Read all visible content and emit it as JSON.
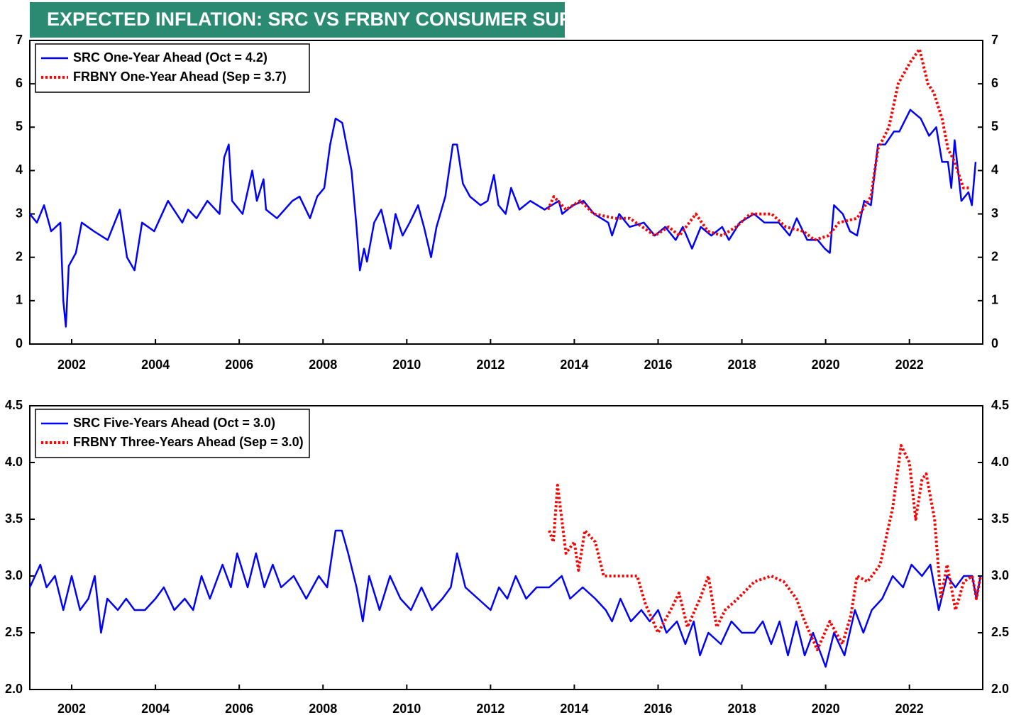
{
  "title": "EXPECTED INFLATION: SRC VS FRBNY CONSUMER SURVEYS",
  "chart_data": [
    {
      "type": "line",
      "legend": "upper left",
      "xlim": [
        2001.0,
        2023.75
      ],
      "ylim": [
        0,
        7
      ],
      "xticks": [
        2002,
        2004,
        2006,
        2008,
        2010,
        2012,
        2014,
        2016,
        2018,
        2020,
        2022
      ],
      "yticks": [
        0,
        1,
        2,
        3,
        4,
        5,
        6,
        7
      ],
      "series": [
        {
          "name": "SRC One-Year Ahead (Oct = 4.2)",
          "color": "#0000ff",
          "style": "solid",
          "x": [
            2001.0,
            2001.17,
            2001.34,
            2001.51,
            2001.73,
            2001.8,
            2001.86,
            2001.93,
            2002.1,
            2002.24,
            2002.53,
            2002.86,
            2003.15,
            2003.32,
            2003.5,
            2003.68,
            2003.97,
            2004.3,
            2004.64,
            2004.78,
            2004.98,
            2005.24,
            2005.53,
            2005.64,
            2005.75,
            2005.83,
            2006.08,
            2006.31,
            2006.42,
            2006.58,
            2006.64,
            2006.9,
            2007.27,
            2007.44,
            2007.69,
            2007.86,
            2008.03,
            2008.17,
            2008.3,
            2008.46,
            2008.68,
            2008.8,
            2008.88,
            2008.98,
            2009.05,
            2009.22,
            2009.39,
            2009.61,
            2009.73,
            2009.9,
            2010.07,
            2010.27,
            2010.41,
            2010.58,
            2010.71,
            2010.92,
            2011.1,
            2011.2,
            2011.34,
            2011.51,
            2011.76,
            2011.93,
            2012.08,
            2012.19,
            2012.36,
            2012.49,
            2012.69,
            2012.95,
            2013.29,
            2013.63,
            2013.71,
            2013.97,
            2014.22,
            2014.47,
            2014.81,
            2014.9,
            2015.07,
            2015.32,
            2015.66,
            2015.92,
            2016.17,
            2016.42,
            2016.59,
            2016.81,
            2017.02,
            2017.27,
            2017.53,
            2017.69,
            2017.95,
            2018.29,
            2018.54,
            2018.88,
            2019.14,
            2019.31,
            2019.56,
            2019.81,
            2019.98,
            2020.1,
            2020.2,
            2020.41,
            2020.58,
            2020.75,
            2020.92,
            2021.08,
            2021.25,
            2021.42,
            2021.63,
            2021.76,
            2022.02,
            2022.27,
            2022.47,
            2022.64,
            2022.78,
            2022.92,
            2023.0,
            2023.08,
            2023.24,
            2023.41,
            2023.49,
            2023.58
          ],
          "values": [
            3.0,
            2.8,
            3.2,
            2.6,
            2.8,
            1.0,
            0.4,
            1.8,
            2.1,
            2.8,
            2.6,
            2.4,
            3.1,
            2.0,
            1.7,
            2.8,
            2.6,
            3.3,
            2.8,
            3.1,
            2.9,
            3.3,
            3.0,
            4.3,
            4.6,
            3.3,
            3.0,
            4.0,
            3.3,
            3.8,
            3.1,
            2.9,
            3.3,
            3.4,
            2.9,
            3.4,
            3.6,
            4.6,
            5.2,
            5.1,
            4.0,
            2.7,
            1.7,
            2.2,
            1.9,
            2.8,
            3.1,
            2.2,
            3.0,
            2.5,
            2.8,
            3.2,
            2.7,
            2.0,
            2.7,
            3.4,
            4.6,
            4.6,
            3.7,
            3.4,
            3.2,
            3.3,
            3.9,
            3.2,
            3.0,
            3.6,
            3.1,
            3.3,
            3.1,
            3.3,
            3.0,
            3.2,
            3.3,
            3.0,
            2.8,
            2.5,
            3.0,
            2.7,
            2.8,
            2.5,
            2.7,
            2.4,
            2.7,
            2.2,
            2.7,
            2.5,
            2.7,
            2.4,
            2.8,
            3.0,
            2.8,
            2.8,
            2.5,
            2.9,
            2.4,
            2.4,
            2.2,
            2.1,
            3.2,
            3.0,
            2.6,
            2.5,
            3.3,
            3.2,
            4.6,
            4.6,
            4.9,
            4.9,
            5.4,
            5.2,
            4.8,
            5.0,
            4.2,
            4.2,
            3.6,
            4.7,
            3.3,
            3.5,
            3.2,
            4.2
          ]
        },
        {
          "name": "FRBNY One-Year Ahead (Sep = 3.7)",
          "color": "#ff0000",
          "style": "dotted",
          "x": [
            2013.37,
            2013.51,
            2013.8,
            2014.14,
            2014.47,
            2014.98,
            2015.32,
            2015.92,
            2016.25,
            2016.51,
            2016.9,
            2017.19,
            2017.53,
            2017.86,
            2018.2,
            2018.71,
            2019.05,
            2019.47,
            2019.73,
            2020.07,
            2020.32,
            2020.75,
            2021.08,
            2021.25,
            2021.51,
            2021.73,
            2022.02,
            2022.24,
            2022.44,
            2022.58,
            2022.78,
            2022.92,
            2023.08,
            2023.29,
            2023.46
          ],
          "values": [
            3.1,
            3.4,
            3.1,
            3.3,
            3.0,
            2.9,
            2.9,
            2.5,
            2.7,
            2.5,
            3.0,
            2.6,
            2.5,
            2.7,
            3.0,
            3.0,
            2.7,
            2.6,
            2.4,
            2.5,
            2.8,
            2.9,
            3.4,
            4.5,
            5.0,
            6.0,
            6.5,
            6.8,
            6.0,
            5.8,
            5.2,
            4.5,
            4.2,
            3.6,
            3.6
          ]
        }
      ]
    },
    {
      "type": "line",
      "legend": "upper left",
      "xlim": [
        2001.0,
        2023.75
      ],
      "ylim": [
        2,
        4.5
      ],
      "xticks": [
        2002,
        2004,
        2006,
        2008,
        2010,
        2012,
        2014,
        2016,
        2018,
        2020,
        2022
      ],
      "yticks": [
        {
          "value": 2,
          "label": "2.0"
        },
        2.5,
        {
          "value": 3,
          "label": "3.0"
        },
        3.5,
        {
          "value": 4,
          "label": "4.0"
        },
        4.5
      ],
      "series": [
        {
          "name": "SRC Five-Years Ahead (Oct = 3.0)",
          "color": "#0000ff",
          "style": "solid",
          "x": [
            2001.0,
            2001.25,
            2001.4,
            2001.6,
            2001.8,
            2002.0,
            2002.2,
            2002.4,
            2002.55,
            2002.7,
            2002.85,
            2003.1,
            2003.3,
            2003.5,
            2003.75,
            2004.0,
            2004.2,
            2004.45,
            2004.7,
            2004.9,
            2005.1,
            2005.3,
            2005.6,
            2005.8,
            2005.95,
            2006.2,
            2006.4,
            2006.6,
            2006.8,
            2007.0,
            2007.3,
            2007.6,
            2007.9,
            2008.1,
            2008.3,
            2008.45,
            2008.6,
            2008.8,
            2008.95,
            2009.1,
            2009.35,
            2009.6,
            2009.85,
            2010.1,
            2010.35,
            2010.6,
            2010.85,
            2011.05,
            2011.2,
            2011.4,
            2011.7,
            2012.0,
            2012.2,
            2012.4,
            2012.6,
            2012.85,
            2013.1,
            2013.4,
            2013.7,
            2013.9,
            2014.2,
            2014.5,
            2014.75,
            2014.9,
            2015.1,
            2015.35,
            2015.6,
            2015.8,
            2016.0,
            2016.2,
            2016.45,
            2016.65,
            2016.85,
            2017.0,
            2017.2,
            2017.5,
            2017.75,
            2018.0,
            2018.3,
            2018.5,
            2018.7,
            2018.9,
            2019.1,
            2019.3,
            2019.5,
            2019.7,
            2019.9,
            2020.0,
            2020.2,
            2020.45,
            2020.7,
            2020.9,
            2021.1,
            2021.35,
            2021.6,
            2021.85,
            2022.05,
            2022.3,
            2022.5,
            2022.7,
            2022.9,
            2023.1,
            2023.3,
            2023.5,
            2023.6,
            2023.7
          ],
          "values": [
            2.9,
            3.1,
            2.9,
            3.0,
            2.7,
            3.0,
            2.7,
            2.8,
            3.0,
            2.5,
            2.8,
            2.7,
            2.8,
            2.7,
            2.7,
            2.8,
            2.9,
            2.7,
            2.8,
            2.7,
            3.0,
            2.8,
            3.1,
            2.9,
            3.2,
            2.9,
            3.2,
            2.9,
            3.1,
            2.9,
            3.0,
            2.8,
            3.0,
            2.9,
            3.4,
            3.4,
            3.2,
            2.9,
            2.6,
            3.0,
            2.7,
            3.0,
            2.8,
            2.7,
            2.9,
            2.7,
            2.8,
            2.9,
            3.2,
            2.9,
            2.8,
            2.7,
            2.9,
            2.8,
            3.0,
            2.8,
            2.9,
            2.9,
            3.0,
            2.8,
            2.9,
            2.8,
            2.7,
            2.6,
            2.8,
            2.6,
            2.7,
            2.6,
            2.7,
            2.5,
            2.6,
            2.4,
            2.6,
            2.3,
            2.5,
            2.4,
            2.6,
            2.5,
            2.5,
            2.6,
            2.4,
            2.6,
            2.3,
            2.6,
            2.3,
            2.5,
            2.3,
            2.2,
            2.5,
            2.3,
            2.7,
            2.5,
            2.7,
            2.8,
            3.0,
            2.9,
            3.1,
            3.0,
            3.1,
            2.7,
            3.0,
            2.9,
            3.0,
            3.0,
            2.8,
            3.0
          ]
        },
        {
          "name": "FRBNY Three-Years Ahead (Sep = 3.0)",
          "color": "#ff0000",
          "style": "dotted",
          "x": [
            2013.4,
            2013.5,
            2013.6,
            2013.8,
            2014.0,
            2014.1,
            2014.25,
            2014.5,
            2014.7,
            2015.0,
            2015.5,
            2015.7,
            2016.0,
            2016.3,
            2016.5,
            2016.7,
            2017.0,
            2017.2,
            2017.4,
            2017.6,
            2017.9,
            2018.3,
            2018.7,
            2019.0,
            2019.3,
            2019.5,
            2019.8,
            2020.1,
            2020.4,
            2020.6,
            2020.75,
            2021.0,
            2021.3,
            2021.6,
            2021.8,
            2022.0,
            2022.15,
            2022.3,
            2022.4,
            2022.6,
            2022.75,
            2022.9,
            2023.1,
            2023.3,
            2023.5,
            2023.6,
            2023.7
          ],
          "values": [
            3.4,
            3.3,
            3.8,
            3.2,
            3.3,
            3.05,
            3.4,
            3.3,
            3.0,
            3.0,
            3.0,
            2.75,
            2.5,
            2.7,
            2.85,
            2.55,
            2.8,
            3.0,
            2.55,
            2.7,
            2.8,
            2.95,
            3.0,
            2.95,
            2.8,
            2.6,
            2.35,
            2.6,
            2.4,
            2.65,
            3.0,
            2.95,
            3.1,
            3.6,
            4.15,
            4.0,
            3.5,
            3.85,
            3.9,
            3.5,
            2.8,
            3.1,
            2.7,
            2.95,
            3.0,
            2.8,
            3.0
          ]
        }
      ]
    }
  ]
}
